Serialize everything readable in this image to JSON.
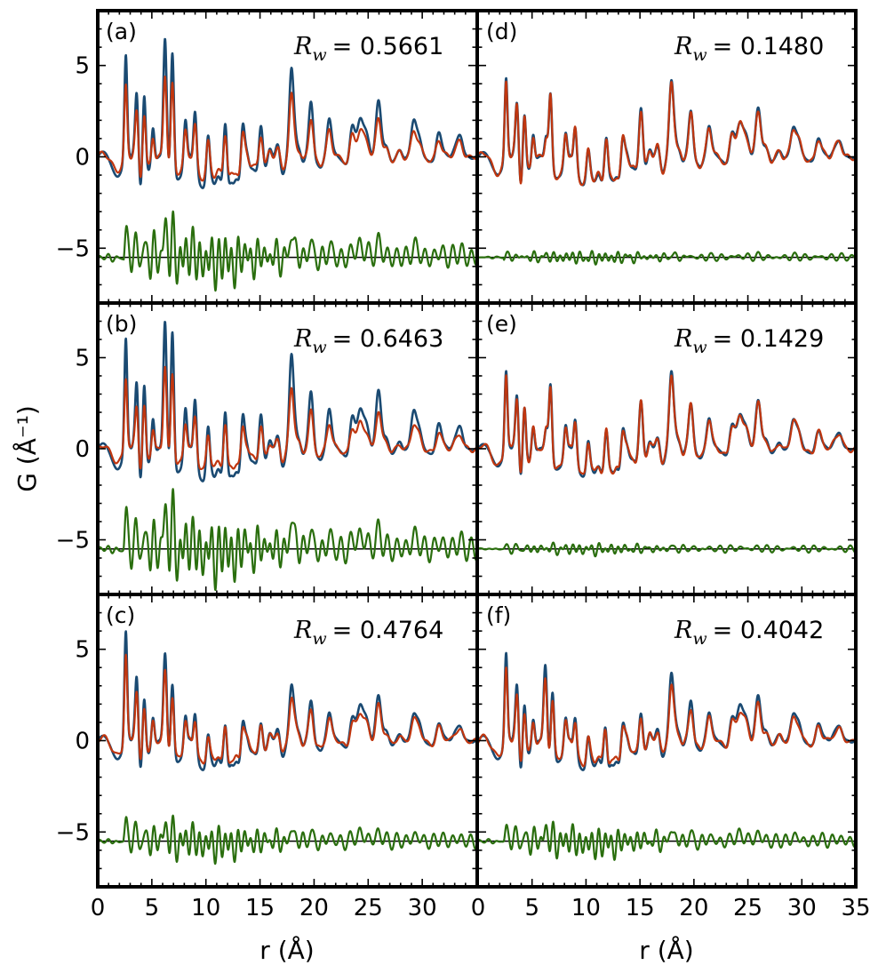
{
  "chart_data": {
    "type": "line",
    "layout": "3x2 grid of PDF fit panels with shared axes",
    "xlabel": "r (Å)",
    "ylabel": "G (Å⁻¹)",
    "xlim": [
      0,
      35
    ],
    "ylim": [
      -8,
      8
    ],
    "x_ticks": [
      0,
      5,
      10,
      15,
      20,
      25,
      30,
      35
    ],
    "x_tick_labels_left": [
      "0",
      "5",
      "10",
      "15",
      "20",
      "25",
      "30",
      ""
    ],
    "x_tick_labels_right": [
      "0",
      "5",
      "10",
      "15",
      "20",
      "25",
      "30",
      "35"
    ],
    "y_ticks": [
      5,
      0,
      -5
    ],
    "y_tick_labels": [
      "5",
      "0",
      "−5"
    ],
    "difference_offset": -5.5,
    "series_colors": {
      "observed": "#1a4a72",
      "calculated": "#c0360f",
      "difference": "#2a6e0e",
      "baseline": "#000000"
    },
    "panels": [
      {
        "label": "(a)",
        "rw_prefix": "R",
        "rw_sub": "w",
        "rw_value": "= 0.5661",
        "peaks": [
          [
            2.6,
            5.3
          ],
          [
            3.6,
            2.0
          ],
          [
            4.3,
            3.5
          ],
          [
            5.1,
            1.8
          ],
          [
            6.2,
            4.8
          ],
          [
            6.9,
            5.9
          ],
          [
            8.1,
            2.5
          ],
          [
            9.0,
            3.0
          ],
          [
            10.2,
            2.4
          ],
          [
            11.8,
            3.0
          ],
          [
            13.4,
            2.5
          ],
          [
            15.1,
            2.0
          ],
          [
            17.9,
            3.7
          ],
          [
            19.7,
            2.0
          ],
          [
            21.4,
            1.6
          ],
          [
            23.5,
            1.4
          ],
          [
            26.0,
            1.8
          ],
          [
            29.2,
            1.5
          ],
          [
            31.5,
            1.2
          ],
          [
            33.5,
            1.1
          ]
        ],
        "obs_amp": 1.15,
        "calc_amp": 0.8,
        "diff_amp": 1.15
      },
      {
        "label": "(d)",
        "rw_prefix": "R",
        "rw_sub": "w",
        "rw_value": "= 0.1480",
        "peaks": [
          [
            2.6,
            4.6
          ],
          [
            3.6,
            1.8
          ],
          [
            4.3,
            2.8
          ],
          [
            5.1,
            1.6
          ],
          [
            6.7,
            4.3
          ],
          [
            8.1,
            2.0
          ],
          [
            9.0,
            2.4
          ],
          [
            10.2,
            1.8
          ],
          [
            11.9,
            2.6
          ],
          [
            13.4,
            2.0
          ],
          [
            15.1,
            3.1
          ],
          [
            17.9,
            3.5
          ],
          [
            19.7,
            1.8
          ],
          [
            21.4,
            1.4
          ],
          [
            23.5,
            1.2
          ],
          [
            26.0,
            1.7
          ],
          [
            29.2,
            1.3
          ],
          [
            31.5,
            1.0
          ],
          [
            33.5,
            0.9
          ]
        ],
        "obs_amp": 1.04,
        "calc_amp": 1.0,
        "diff_amp": 0.25
      },
      {
        "label": "(b)",
        "rw_prefix": "R",
        "rw_sub": "w",
        "rw_value": "= 0.6463",
        "peaks": [
          [
            2.6,
            5.5
          ],
          [
            3.6,
            2.0
          ],
          [
            4.3,
            3.5
          ],
          [
            5.1,
            1.8
          ],
          [
            6.2,
            5.0
          ],
          [
            6.9,
            6.3
          ],
          [
            8.1,
            2.6
          ],
          [
            9.0,
            3.1
          ],
          [
            10.2,
            2.4
          ],
          [
            11.8,
            3.1
          ],
          [
            13.4,
            2.5
          ],
          [
            15.1,
            2.1
          ],
          [
            17.9,
            3.8
          ],
          [
            19.7,
            2.0
          ],
          [
            21.4,
            1.6
          ],
          [
            23.5,
            1.4
          ],
          [
            26.0,
            1.8
          ],
          [
            29.2,
            1.5
          ],
          [
            31.5,
            1.2
          ],
          [
            33.5,
            1.1
          ]
        ],
        "obs_amp": 1.2,
        "calc_amp": 0.78,
        "diff_amp": 1.3
      },
      {
        "label": "(e)",
        "rw_prefix": "R",
        "rw_sub": "w",
        "rw_value": "= 0.1429",
        "peaks": [
          [
            2.6,
            4.6
          ],
          [
            3.6,
            1.8
          ],
          [
            4.3,
            2.8
          ],
          [
            5.1,
            1.6
          ],
          [
            6.7,
            4.4
          ],
          [
            8.1,
            2.0
          ],
          [
            9.0,
            2.4
          ],
          [
            10.2,
            1.8
          ],
          [
            11.9,
            2.6
          ],
          [
            13.4,
            2.0
          ],
          [
            15.1,
            3.1
          ],
          [
            17.9,
            3.6
          ],
          [
            19.7,
            1.8
          ],
          [
            21.4,
            1.4
          ],
          [
            23.5,
            1.2
          ],
          [
            26.0,
            1.7
          ],
          [
            29.2,
            1.3
          ],
          [
            31.5,
            1.0
          ],
          [
            33.5,
            0.9
          ]
        ],
        "obs_amp": 1.03,
        "calc_amp": 1.0,
        "diff_amp": 0.22
      },
      {
        "label": "(c)",
        "rw_prefix": "R",
        "rw_sub": "w",
        "rw_value": "= 0.4764",
        "peaks": [
          [
            2.6,
            6.0
          ],
          [
            3.6,
            2.2
          ],
          [
            4.3,
            2.7
          ],
          [
            5.1,
            1.6
          ],
          [
            6.2,
            3.6
          ],
          [
            6.9,
            3.8
          ],
          [
            8.1,
            2.0
          ],
          [
            9.0,
            2.2
          ],
          [
            10.2,
            1.7
          ],
          [
            11.8,
            2.2
          ],
          [
            13.4,
            1.9
          ],
          [
            15.1,
            1.4
          ],
          [
            17.9,
            2.3
          ],
          [
            19.7,
            1.4
          ],
          [
            21.4,
            1.2
          ],
          [
            23.5,
            1.1
          ],
          [
            26.0,
            1.4
          ],
          [
            29.2,
            1.1
          ],
          [
            31.5,
            0.9
          ],
          [
            33.5,
            0.8
          ]
        ],
        "obs_amp": 1.08,
        "calc_amp": 0.85,
        "diff_amp": 0.75
      },
      {
        "label": "(f)",
        "rw_prefix": "R",
        "rw_sub": "w",
        "rw_value": "= 0.4042",
        "peaks": [
          [
            2.6,
            4.9
          ],
          [
            3.6,
            1.8
          ],
          [
            4.3,
            2.4
          ],
          [
            5.1,
            1.5
          ],
          [
            6.2,
            3.0
          ],
          [
            6.9,
            3.4
          ],
          [
            8.1,
            1.9
          ],
          [
            9.0,
            2.0
          ],
          [
            10.2,
            1.6
          ],
          [
            11.8,
            2.1
          ],
          [
            13.4,
            1.8
          ],
          [
            15.1,
            1.9
          ],
          [
            17.9,
            2.9
          ],
          [
            19.7,
            1.4
          ],
          [
            21.4,
            1.2
          ],
          [
            23.5,
            1.1
          ],
          [
            26.0,
            1.4
          ],
          [
            29.2,
            1.1
          ],
          [
            31.5,
            0.9
          ],
          [
            33.5,
            0.8
          ]
        ],
        "obs_amp": 1.08,
        "calc_amp": 0.88,
        "diff_amp": 0.65
      }
    ]
  }
}
